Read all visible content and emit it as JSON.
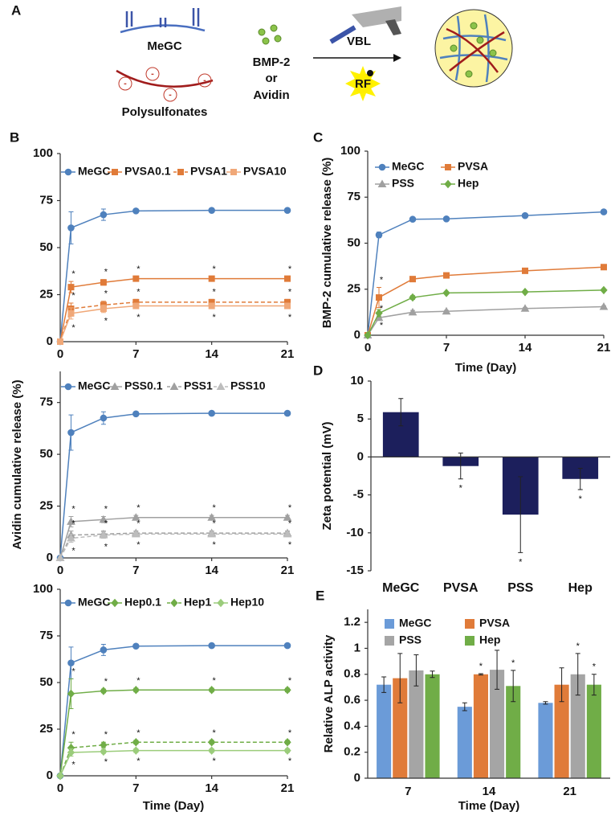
{
  "panels": [
    "A",
    "B",
    "C",
    "D",
    "E"
  ],
  "schematic": {
    "polymer": "MeGC",
    "polyanion": "Polysulfonates",
    "charge": "-",
    "protein_1": "BMP-2",
    "conjunction": "or",
    "protein_2": "Avidin",
    "light": "VBL",
    "initiator": "RF"
  },
  "chart_data": [
    {
      "type": "line",
      "ylabel": "Avidin cumulative release (%)",
      "x": [
        0,
        1,
        4,
        7,
        14,
        21
      ],
      "xlim": [
        0,
        21
      ],
      "xticks": [
        0,
        7,
        14,
        21
      ],
      "ylim": [
        0,
        100
      ],
      "yticks": [
        0,
        25,
        50,
        75,
        100
      ],
      "legend": "top",
      "legend_columns": 4,
      "series": [
        {
          "name": "MeGC",
          "color": "#4f81bd",
          "marker": "circle",
          "linestyle": "solid",
          "values": [
            0,
            60.5,
            67.5,
            69.5,
            69.8,
            69.8
          ],
          "errors": [
            0,
            8.5,
            3,
            0.5,
            0.5,
            0.5
          ]
        },
        {
          "name": "PVSA0.1",
          "color": "#e07b39",
          "marker": "square",
          "linestyle": "solid",
          "values": [
            0,
            29,
            31.5,
            33.5,
            33.5,
            33.5
          ],
          "errors": [
            0,
            3,
            1.5,
            1,
            1,
            1
          ],
          "significance": [
            null,
            "*",
            "*",
            "*",
            "*",
            "*"
          ]
        },
        {
          "name": "PVSA1",
          "color": "#e07b39",
          "marker": "square",
          "linestyle": "dashed",
          "values": [
            0,
            17.5,
            19.5,
            21,
            21,
            21
          ],
          "errors": [
            0,
            3,
            2,
            1.5,
            1.5,
            1.5
          ],
          "significance": [
            null,
            "*",
            "*",
            "*",
            "*",
            "*"
          ]
        },
        {
          "name": "PVSA10",
          "color": "#f0a878",
          "marker": "square",
          "linestyle": "solid",
          "values": [
            0,
            15,
            17.5,
            19,
            19,
            19
          ],
          "errors": [
            0,
            3,
            2,
            1.5,
            1.5,
            1.5
          ],
          "significance": [
            null,
            "*",
            "*",
            "*",
            "*",
            "*"
          ]
        }
      ]
    },
    {
      "type": "line",
      "x": [
        0,
        1,
        4,
        7,
        14,
        21
      ],
      "xlim": [
        0,
        21
      ],
      "xticks": [
        0,
        7,
        14,
        21
      ],
      "ylim": [
        0,
        90
      ],
      "yticks": [
        0,
        25,
        50,
        75
      ],
      "legend": "top",
      "legend_columns": 4,
      "series": [
        {
          "name": "MeGC",
          "color": "#4f81bd",
          "marker": "circle",
          "linestyle": "solid",
          "values": [
            0,
            60.5,
            67.5,
            69.5,
            69.8,
            69.8
          ],
          "errors": [
            0,
            8.5,
            3,
            0.5,
            0.5,
            0.5
          ]
        },
        {
          "name": "PSS0.1",
          "color": "#a0a0a0",
          "marker": "triangle",
          "linestyle": "solid",
          "values": [
            0,
            17.5,
            18.5,
            19.5,
            19.5,
            19.5
          ],
          "errors": [
            0,
            2.5,
            1.5,
            1,
            1,
            1
          ],
          "significance": [
            null,
            "*",
            "*",
            "*",
            "*",
            "*"
          ]
        },
        {
          "name": "PSS1",
          "color": "#a0a0a0",
          "marker": "triangle",
          "linestyle": "dashed",
          "values": [
            0,
            11,
            11.5,
            12,
            12,
            12
          ],
          "errors": [
            0,
            2,
            1.5,
            1,
            1,
            1
          ],
          "significance": [
            null,
            "*",
            "*",
            "*",
            "*",
            "*"
          ]
        },
        {
          "name": "PSS10",
          "color": "#bdbdbd",
          "marker": "triangle",
          "linestyle": "dashed",
          "values": [
            0,
            9.5,
            11,
            11.5,
            11.5,
            11.5
          ],
          "errors": [
            0,
            2,
            1.5,
            1,
            1,
            1
          ],
          "significance": [
            null,
            "*",
            "*",
            "*",
            "*",
            "*"
          ]
        }
      ]
    },
    {
      "type": "line",
      "xlabel": "Time (Day)",
      "x": [
        0,
        1,
        4,
        7,
        14,
        21
      ],
      "xlim": [
        0,
        21
      ],
      "xticks": [
        0,
        7,
        14,
        21
      ],
      "ylim": [
        0,
        100
      ],
      "yticks": [
        0,
        25,
        50,
        75,
        100
      ],
      "legend": "top",
      "legend_columns": 4,
      "series": [
        {
          "name": "MeGC",
          "color": "#4f81bd",
          "marker": "circle",
          "linestyle": "solid",
          "values": [
            0,
            60.5,
            67.5,
            69.5,
            69.8,
            69.8
          ],
          "errors": [
            0,
            8.5,
            3,
            0.5,
            0.5,
            0.5
          ]
        },
        {
          "name": "Hep0.1",
          "color": "#70ad47",
          "marker": "diamond",
          "linestyle": "solid",
          "values": [
            0,
            44,
            45.5,
            46,
            46,
            46
          ],
          "errors": [
            0,
            8,
            1,
            1,
            1,
            1
          ],
          "significance": [
            null,
            "*",
            "*",
            "*",
            "*",
            "*"
          ]
        },
        {
          "name": "Hep1",
          "color": "#70ad47",
          "marker": "diamond",
          "linestyle": "dashed",
          "values": [
            0,
            15,
            16.5,
            18,
            18,
            18
          ],
          "errors": [
            0,
            3,
            1.5,
            1,
            1,
            1
          ],
          "significance": [
            null,
            "*",
            "*",
            "*",
            "*",
            "*"
          ]
        },
        {
          "name": "Hep10",
          "color": "#9bcc7b",
          "marker": "diamond",
          "linestyle": "solid",
          "values": [
            0,
            12.5,
            13,
            13.5,
            13.5,
            13.5
          ],
          "errors": [
            0,
            2,
            1,
            1,
            1,
            1
          ],
          "significance": [
            null,
            "*",
            "*",
            "*",
            "*",
            "*"
          ]
        }
      ]
    },
    {
      "type": "line",
      "ylabel": "BMP-2 cumulative release (%)",
      "xlabel": "Time (Day)",
      "x": [
        0,
        1,
        4,
        7,
        14,
        21
      ],
      "xlim": [
        0,
        21
      ],
      "xticks": [
        0,
        7,
        14,
        21
      ],
      "ylim": [
        0,
        100
      ],
      "yticks": [
        0,
        25,
        50,
        75,
        100
      ],
      "legend": "upper left",
      "legend_columns": 2,
      "series": [
        {
          "name": "MeGC",
          "color": "#4f81bd",
          "marker": "circle",
          "linestyle": "solid",
          "values": [
            0,
            54.5,
            63,
            63.2,
            65,
            67
          ],
          "errors": [
            0,
            1.5,
            0.5,
            0.5,
            0.5,
            0.5
          ]
        },
        {
          "name": "PVSA",
          "color": "#e07b39",
          "marker": "square",
          "linestyle": "solid",
          "values": [
            0,
            20.5,
            30.5,
            32.5,
            35,
            37
          ],
          "errors": [
            0,
            5.5,
            1,
            1,
            1,
            1
          ],
          "significance": [
            null,
            "*",
            null,
            null,
            null,
            null
          ]
        },
        {
          "name": "PSS",
          "color": "#a0a0a0",
          "marker": "triangle",
          "linestyle": "solid",
          "values": [
            0,
            9.5,
            12.5,
            13,
            14.5,
            15.5
          ],
          "errors": [
            0,
            1,
            1,
            0.5,
            0.5,
            0.5
          ],
          "significance": [
            null,
            "*",
            null,
            null,
            null,
            null
          ]
        },
        {
          "name": "Hep",
          "color": "#70ad47",
          "marker": "diamond",
          "linestyle": "solid",
          "values": [
            0,
            12,
            20.5,
            23,
            23.5,
            24.5
          ],
          "errors": [
            0,
            2,
            1,
            0.5,
            0.5,
            0.5
          ],
          "significance": [
            null,
            "*",
            null,
            null,
            null,
            null
          ]
        }
      ]
    },
    {
      "type": "bar",
      "ylabel": "Zeta potential (mV)",
      "categories": [
        "MeGC",
        "PVSA",
        "PSS",
        "Hep"
      ],
      "values": [
        5.9,
        -1.2,
        -7.6,
        -2.9
      ],
      "errors": [
        1.8,
        1.7,
        5,
        1.4
      ],
      "significance": [
        null,
        "*",
        "*",
        "*"
      ],
      "color": "#1c1f5c",
      "ylim": [
        -15,
        10
      ],
      "yticks": [
        -15,
        -10,
        -5,
        0,
        5,
        10
      ]
    },
    {
      "type": "bar",
      "ylabel": "Relative ALP activity",
      "xlabel": "Time (Day)",
      "categories": [
        "7",
        "14",
        "21"
      ],
      "ylim": [
        0,
        1.3
      ],
      "yticks": [
        0,
        0.2,
        0.4,
        0.6,
        0.8,
        1,
        1.2
      ],
      "legend": "upper left",
      "legend_columns": 2,
      "series": [
        {
          "name": "MeGC",
          "color": "#6b9bd8",
          "values": [
            0.72,
            0.55,
            0.58
          ],
          "errors": [
            0.06,
            0.03,
            0.01
          ]
        },
        {
          "name": "PVSA",
          "color": "#e07b39",
          "values": [
            0.77,
            0.8,
            0.72
          ],
          "errors": [
            0.19,
            0.005,
            0.13
          ],
          "significance": [
            null,
            "*",
            null
          ]
        },
        {
          "name": "PSS",
          "color": "#a5a5a5",
          "values": [
            0.83,
            0.835,
            0.8
          ],
          "errors": [
            0.12,
            0.15,
            0.16
          ],
          "significance": [
            null,
            null,
            "*"
          ]
        },
        {
          "name": "Hep",
          "color": "#70ad47",
          "values": [
            0.8,
            0.71,
            0.72
          ],
          "errors": [
            0.025,
            0.12,
            0.08
          ],
          "significance": [
            null,
            "*",
            "*"
          ]
        }
      ]
    }
  ]
}
